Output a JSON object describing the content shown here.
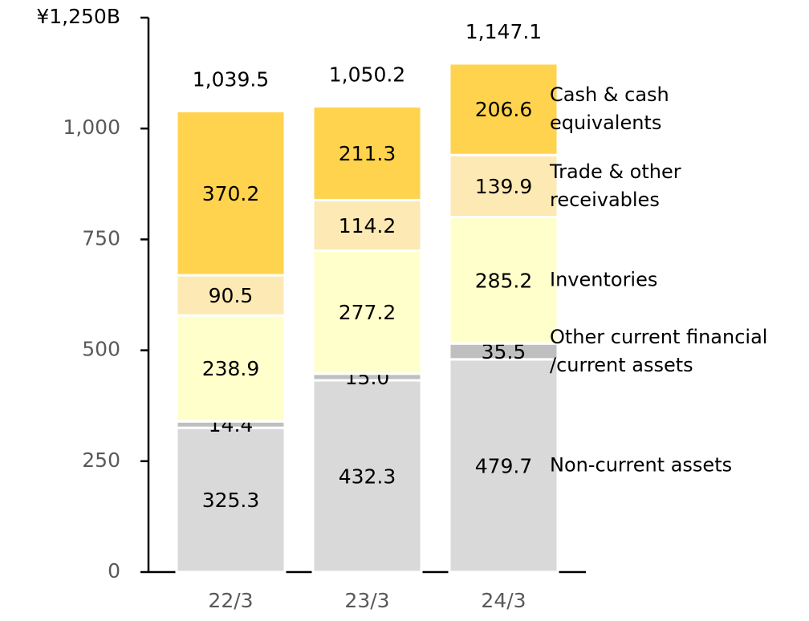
{
  "chart_data": {
    "type": "stacked-bar",
    "categories": [
      "22/3",
      "23/3",
      "24/3"
    ],
    "series": [
      {
        "name": "Non-current assets",
        "color": "#d9d9d9",
        "values": [
          325.3,
          432.3,
          479.7
        ]
      },
      {
        "name": "Other current financial\n/current assets",
        "color": "#bfbfbf",
        "values": [
          14.4,
          15.0,
          35.5
        ],
        "value_labels": [
          "14.4",
          "15.0",
          "35.5"
        ]
      },
      {
        "name": "Inventories",
        "color": "#ffffcc",
        "values": [
          238.9,
          277.2,
          285.2
        ]
      },
      {
        "name": "Trade & other\nreceivables",
        "color": "#fde9b3",
        "values": [
          90.5,
          114.2,
          139.9
        ]
      },
      {
        "name": "Cash & cash\nequivalents",
        "color": "#ffd34d",
        "values": [
          370.2,
          211.3,
          206.6
        ]
      }
    ],
    "totals": [
      1039.5,
      1050.2,
      1147.1
    ],
    "total_labels": [
      "1,039.5",
      "1,050.2",
      "1,147.1"
    ],
    "ylim": [
      0,
      1250
    ],
    "yticks": [
      0,
      250,
      500,
      750,
      {
        "value": 1000,
        "label": "1,000"
      },
      {
        "value": 1250,
        "label": "¥1,250B"
      }
    ]
  }
}
